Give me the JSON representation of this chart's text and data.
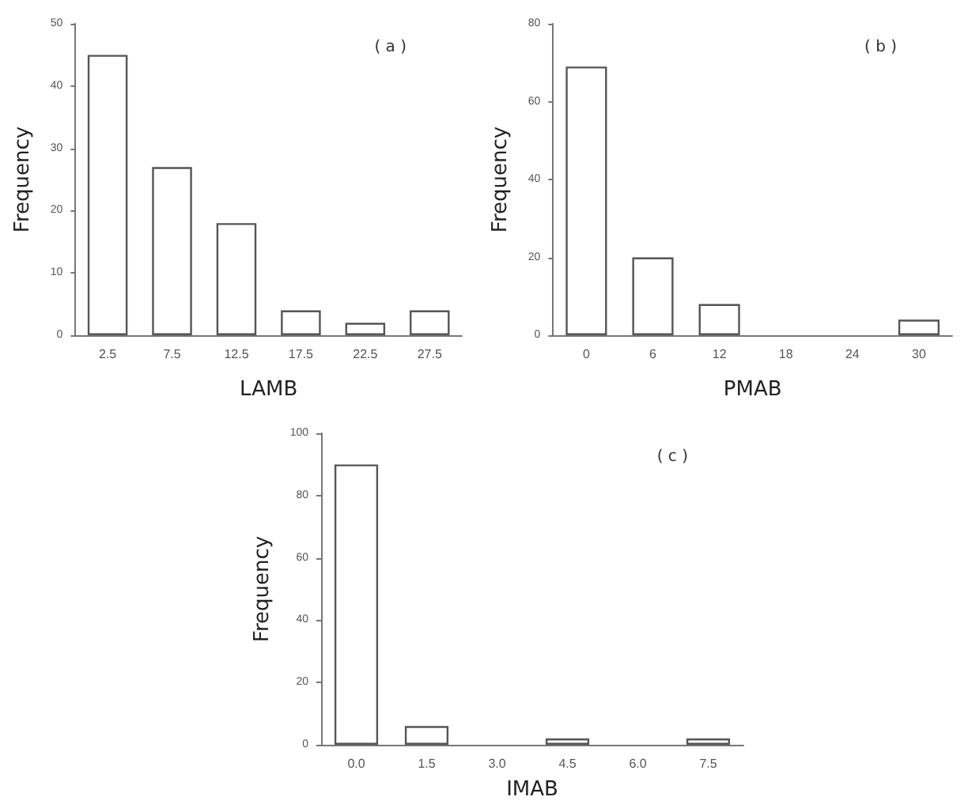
{
  "chart_data": [
    {
      "type": "bar",
      "xlabel": "LAMB",
      "ylabel": "Frequency",
      "annotations": [
        "( a )"
      ],
      "categories": [
        "2.5",
        "7.5",
        "12.5",
        "17.5",
        "22.5",
        "27.5"
      ],
      "values": [
        45,
        27,
        18,
        4,
        2,
        4
      ],
      "color": "#ffffff",
      "ylim": [
        0,
        50
      ],
      "yticks": [
        0,
        10,
        20,
        30,
        40,
        50
      ],
      "grid": false
    },
    {
      "type": "bar",
      "xlabel": "PMAB",
      "ylabel": "Frequency",
      "annotations": [
        "( b )"
      ],
      "categories": [
        "0",
        "6",
        "12",
        "18",
        "24",
        "30"
      ],
      "values": [
        69,
        20,
        8,
        0,
        0,
        4
      ],
      "color": "#ffffff",
      "ylim": [
        0,
        80
      ],
      "yticks": [
        0,
        20,
        40,
        60,
        80
      ],
      "grid": false
    },
    {
      "type": "bar",
      "xlabel": "IMAB",
      "ylabel": "Frequency",
      "annotations": [
        "( c )"
      ],
      "categories": [
        "0.0",
        "1.5",
        "3.0",
        "4.5",
        "6.0",
        "7.5"
      ],
      "values": [
        90,
        6,
        0,
        2,
        0,
        2
      ],
      "color": "#ffffff",
      "ylim": [
        0,
        100
      ],
      "yticks": [
        0,
        20,
        40,
        60,
        80,
        100
      ],
      "grid": false
    }
  ]
}
